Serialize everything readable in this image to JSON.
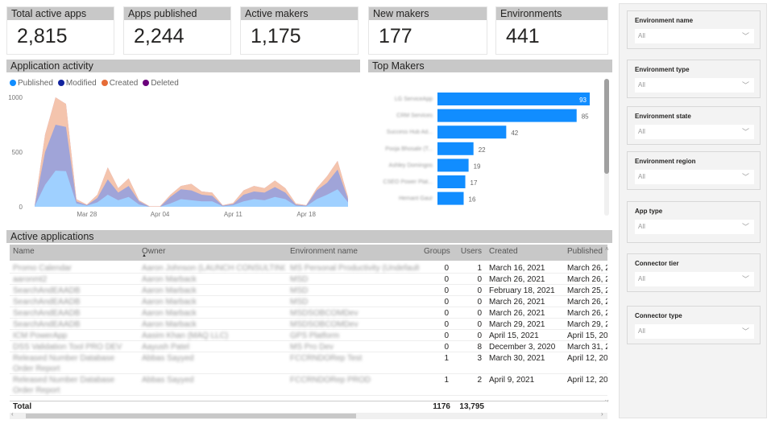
{
  "kpis": [
    {
      "label": "Total active apps",
      "value": "2,815"
    },
    {
      "label": "Apps published",
      "value": "2,244"
    },
    {
      "label": "Active makers",
      "value": "1,175"
    },
    {
      "label": "New makers",
      "value": "177"
    },
    {
      "label": "Environments",
      "value": "441"
    }
  ],
  "activity": {
    "title": "Application activity",
    "chart_data": {
      "type": "area",
      "stacked": true,
      "x": [
        "Mar 23",
        "Mar 24",
        "Mar 25",
        "Mar 26",
        "Mar 27",
        "Mar 28",
        "Mar 29",
        "Mar 30",
        "Mar 31",
        "Apr 01",
        "Apr 02",
        "Apr 03",
        "Apr 04",
        "Apr 05",
        "Apr 06",
        "Apr 07",
        "Apr 08",
        "Apr 09",
        "Apr 10",
        "Apr 11",
        "Apr 12",
        "Apr 13",
        "Apr 14",
        "Apr 15",
        "Apr 16",
        "Apr 17",
        "Apr 18",
        "Apr 19",
        "Apr 20",
        "Apr 21",
        "Apr 22"
      ],
      "x_ticks": [
        "Mar 28",
        "Apr 04",
        "Apr 11",
        "Apr 18"
      ],
      "y_ticks": [
        "0",
        "500",
        "1000"
      ],
      "ylim": [
        0,
        1000
      ],
      "series": [
        {
          "name": "Published",
          "color": "#118dff",
          "values": [
            5,
            200,
            330,
            325,
            30,
            10,
            40,
            110,
            60,
            90,
            20,
            0,
            0,
            30,
            70,
            60,
            50,
            50,
            5,
            15,
            50,
            70,
            60,
            90,
            70,
            10,
            5,
            70,
            110,
            160,
            40
          ]
        },
        {
          "name": "Modified",
          "color": "#12239e",
          "values": [
            0,
            300,
            420,
            405,
            20,
            5,
            40,
            140,
            70,
            100,
            30,
            0,
            0,
            60,
            90,
            90,
            60,
            50,
            5,
            10,
            60,
            70,
            70,
            90,
            60,
            10,
            5,
            80,
            110,
            180,
            30
          ]
        },
        {
          "name": "Created",
          "color": "#e66c37",
          "values": [
            5,
            160,
            250,
            210,
            20,
            5,
            30,
            110,
            40,
            70,
            10,
            5,
            5,
            20,
            30,
            60,
            30,
            30,
            5,
            10,
            40,
            50,
            40,
            60,
            40,
            10,
            5,
            20,
            60,
            80,
            20
          ]
        },
        {
          "name": "Deleted",
          "color": "#6b007b",
          "values": [
            0,
            0,
            0,
            0,
            0,
            0,
            0,
            0,
            0,
            0,
            0,
            0,
            0,
            0,
            0,
            0,
            0,
            0,
            0,
            0,
            0,
            0,
            0,
            0,
            0,
            0,
            0,
            0,
            0,
            0,
            0
          ]
        }
      ]
    }
  },
  "makers": {
    "title": "Top Makers",
    "chart_data": {
      "type": "bar",
      "orientation": "horizontal",
      "color": "#118dff",
      "categories": [
        "LG ServiceApp",
        "CRM Services",
        "Success Hub Ad...",
        "Pooja Bhosale (T...",
        "Ashley Domingos",
        "CSEO Power Plat...",
        "Hemant Gaur"
      ],
      "values": [
        93,
        85,
        42,
        22,
        19,
        17,
        16
      ]
    }
  },
  "table": {
    "title": "Active applications",
    "columns": [
      "Name",
      "Owner",
      "Environment name",
      "Groups",
      "Users",
      "Created",
      "Published"
    ],
    "rows": [
      [
        "Promo Calendar",
        "Aaron Johnson (LAUNCH CONSULTING)",
        "MS Personal Productivity (Undefault)",
        "0",
        "1",
        "March 16, 2021",
        "March 26, 2"
      ],
      [
        "aaronmt2",
        "Aaron Marback",
        "MSD",
        "0",
        "0",
        "March 26, 2021",
        "March 26, 2"
      ],
      [
        "SearchAndEAADB",
        "Aaron Marback",
        "MSD",
        "0",
        "0",
        "February 18, 2021",
        "March 25, 2"
      ],
      [
        "SearchAndEAADB",
        "Aaron Marback",
        "MSD",
        "0",
        "0",
        "March 26, 2021",
        "March 26, 2"
      ],
      [
        "SearchAndEAADB",
        "Aaron Marback",
        "MSDSOBCOMDev",
        "0",
        "0",
        "March 26, 2021",
        "March 26, 2"
      ],
      [
        "SearchAndEAADB",
        "Aaron Marback",
        "MSDSOBCOMDev",
        "0",
        "0",
        "March 29, 2021",
        "March 29, 2"
      ],
      [
        "ICM PowerApp",
        "Aasim Khan (MAQ LLC)",
        "GPS Platform",
        "0",
        "0",
        "April 15, 2021",
        "April 15, 20"
      ],
      [
        "DSS Validation Tool PRO DEV",
        "Aayush Patel",
        "MS Pro Dev",
        "0",
        "8",
        "December 3, 2020",
        "March 31, 2"
      ],
      [
        "Released Number Database Order Report",
        "Abbas Sayyed",
        "FCCRNDORep Test",
        "1",
        "3",
        "March 30, 2021",
        "April 12, 20"
      ],
      [
        "Released Number Database Order Report",
        "Abbas Sayyed",
        "FCCRNDORep PROD",
        "1",
        "2",
        "April 9, 2021",
        "April 12, 20"
      ]
    ],
    "total": {
      "label": "Total",
      "groups": "1176",
      "users": "13,795"
    }
  },
  "filters": [
    {
      "label": "Environment name",
      "value": "All"
    },
    {
      "label": "Environment type",
      "value": "All"
    },
    {
      "label": "Environment state",
      "value": "All"
    },
    {
      "label": "Environment region",
      "value": "All"
    },
    {
      "label": "App type",
      "value": "All"
    },
    {
      "label": "Connector tier",
      "value": "All"
    },
    {
      "label": "Connector type",
      "value": "All"
    }
  ]
}
